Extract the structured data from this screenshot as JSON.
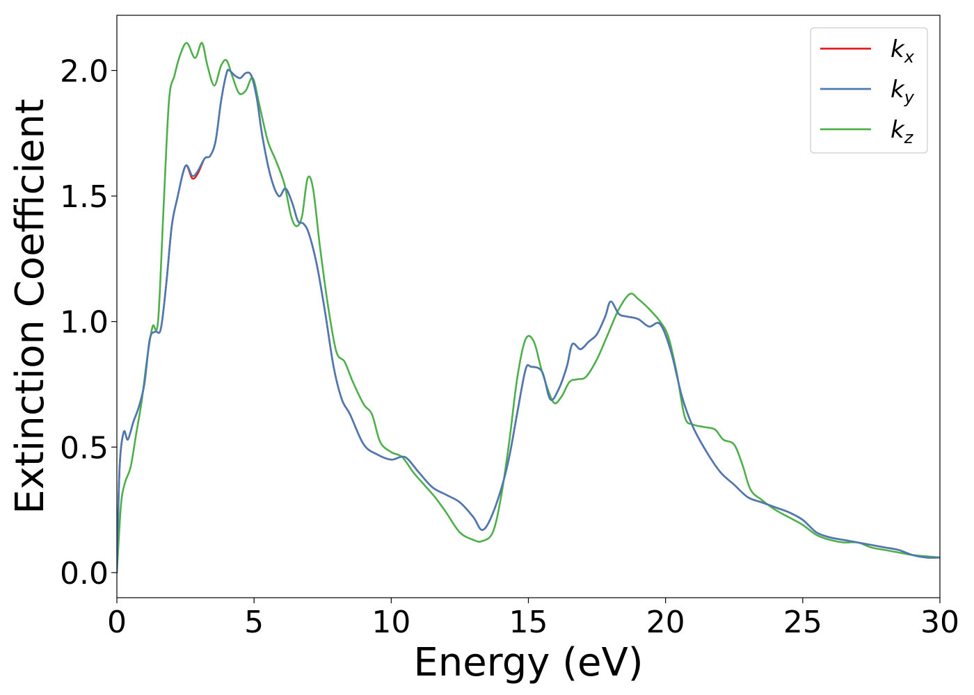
{
  "chart_data": {
    "type": "line",
    "xlabel": "Energy (eV)",
    "ylabel": "Extinction Coefficient",
    "xlim": [
      0,
      30
    ],
    "ylim": [
      -0.1,
      2.22
    ],
    "xticks": [
      0,
      5,
      10,
      15,
      20,
      25,
      30
    ],
    "xtick_labels": [
      "0",
      "5",
      "10",
      "15",
      "20",
      "25",
      "30"
    ],
    "yticks": [
      0.0,
      0.5,
      1.0,
      1.5,
      2.0
    ],
    "ytick_labels": [
      "0.0",
      "0.5",
      "1.0",
      "1.5",
      "2.0"
    ],
    "grid": false,
    "legend_position": "top-right",
    "series": [
      {
        "name": "k",
        "subscript": "x",
        "color": "#e41a1c",
        "x": [
          0,
          0.1,
          0.25,
          0.4,
          0.6,
          0.8,
          1.0,
          1.2,
          1.4,
          1.6,
          1.8,
          2.0,
          2.2,
          2.5,
          2.75,
          2.95,
          3.2,
          3.4,
          3.6,
          3.8,
          4.0,
          4.1,
          4.3,
          4.5,
          4.7,
          4.9,
          5.1,
          5.3,
          5.6,
          5.9,
          6.15,
          6.4,
          6.6,
          6.8,
          7.0,
          7.3,
          7.6,
          7.9,
          8.2,
          8.5,
          9.0,
          9.5,
          10.0,
          10.5,
          11.0,
          11.5,
          12.0,
          12.5,
          13.0,
          13.3,
          13.6,
          14.0,
          14.3,
          14.6,
          14.9,
          15.1,
          15.5,
          15.8,
          16.1,
          16.4,
          16.6,
          16.9,
          17.2,
          17.5,
          17.8,
          18.0,
          18.3,
          18.6,
          19.0,
          19.4,
          19.8,
          20.2,
          20.6,
          21.0,
          21.5,
          22.0,
          22.5,
          23.0,
          23.5,
          24.0,
          24.5,
          25.0,
          25.5,
          26.0,
          26.5,
          27.0,
          27.5,
          28.0,
          28.5,
          29.0,
          29.5,
          30.0
        ],
        "y": [
          0.0,
          0.42,
          0.56,
          0.53,
          0.6,
          0.66,
          0.75,
          0.93,
          0.96,
          0.97,
          1.15,
          1.38,
          1.49,
          1.62,
          1.57,
          1.59,
          1.65,
          1.66,
          1.72,
          1.88,
          1.99,
          2.0,
          1.98,
          1.97,
          1.99,
          1.98,
          1.89,
          1.74,
          1.58,
          1.5,
          1.53,
          1.47,
          1.4,
          1.39,
          1.35,
          1.22,
          1.03,
          0.82,
          0.69,
          0.63,
          0.51,
          0.47,
          0.45,
          0.46,
          0.4,
          0.34,
          0.31,
          0.28,
          0.22,
          0.17,
          0.21,
          0.33,
          0.46,
          0.64,
          0.81,
          0.82,
          0.8,
          0.69,
          0.73,
          0.82,
          0.91,
          0.89,
          0.92,
          0.95,
          1.02,
          1.08,
          1.03,
          1.02,
          1.01,
          0.98,
          0.99,
          0.88,
          0.7,
          0.58,
          0.48,
          0.4,
          0.35,
          0.3,
          0.28,
          0.26,
          0.24,
          0.21,
          0.16,
          0.14,
          0.13,
          0.12,
          0.11,
          0.1,
          0.09,
          0.07,
          0.06,
          0.06
        ]
      },
      {
        "name": "k",
        "subscript": "y",
        "color": "#4a7ab4",
        "x": [
          0,
          0.1,
          0.25,
          0.4,
          0.6,
          0.8,
          1.0,
          1.2,
          1.4,
          1.6,
          1.8,
          2.0,
          2.2,
          2.5,
          2.75,
          2.95,
          3.2,
          3.4,
          3.6,
          3.8,
          4.0,
          4.1,
          4.3,
          4.5,
          4.7,
          4.9,
          5.1,
          5.3,
          5.6,
          5.9,
          6.15,
          6.4,
          6.6,
          6.8,
          7.0,
          7.3,
          7.6,
          7.9,
          8.2,
          8.5,
          9.0,
          9.5,
          10.0,
          10.5,
          11.0,
          11.5,
          12.0,
          12.5,
          13.0,
          13.3,
          13.6,
          14.0,
          14.3,
          14.6,
          14.9,
          15.1,
          15.5,
          15.8,
          16.1,
          16.4,
          16.6,
          16.9,
          17.2,
          17.5,
          17.8,
          18.0,
          18.3,
          18.6,
          19.0,
          19.4,
          19.8,
          20.2,
          20.6,
          21.0,
          21.5,
          22.0,
          22.5,
          23.0,
          23.5,
          24.0,
          24.5,
          25.0,
          25.5,
          26.0,
          26.5,
          27.0,
          27.5,
          28.0,
          28.5,
          29.0,
          29.5,
          30.0
        ],
        "y": [
          0.0,
          0.42,
          0.56,
          0.53,
          0.6,
          0.66,
          0.75,
          0.93,
          0.96,
          0.97,
          1.15,
          1.38,
          1.49,
          1.62,
          1.58,
          1.6,
          1.65,
          1.66,
          1.72,
          1.88,
          1.99,
          2.0,
          1.98,
          1.97,
          1.99,
          1.98,
          1.89,
          1.74,
          1.58,
          1.5,
          1.53,
          1.47,
          1.4,
          1.39,
          1.35,
          1.22,
          1.03,
          0.82,
          0.69,
          0.63,
          0.51,
          0.47,
          0.45,
          0.46,
          0.4,
          0.34,
          0.31,
          0.28,
          0.22,
          0.17,
          0.21,
          0.33,
          0.46,
          0.64,
          0.81,
          0.82,
          0.8,
          0.69,
          0.73,
          0.82,
          0.91,
          0.89,
          0.92,
          0.95,
          1.02,
          1.08,
          1.03,
          1.02,
          1.01,
          0.98,
          0.99,
          0.88,
          0.7,
          0.58,
          0.48,
          0.4,
          0.35,
          0.3,
          0.28,
          0.26,
          0.24,
          0.21,
          0.16,
          0.14,
          0.13,
          0.12,
          0.11,
          0.1,
          0.09,
          0.07,
          0.06,
          0.06
        ]
      },
      {
        "name": "k",
        "subscript": "z",
        "color": "#4daf4a",
        "x": [
          0,
          0.15,
          0.3,
          0.5,
          0.7,
          0.9,
          1.1,
          1.3,
          1.5,
          1.7,
          1.9,
          2.1,
          2.3,
          2.55,
          2.85,
          3.1,
          3.3,
          3.55,
          3.8,
          4.0,
          4.2,
          4.45,
          4.7,
          4.95,
          5.2,
          5.5,
          5.8,
          6.1,
          6.35,
          6.55,
          6.75,
          6.95,
          7.15,
          7.4,
          7.7,
          8.0,
          8.3,
          8.6,
          9.0,
          9.3,
          9.6,
          10.0,
          10.4,
          10.8,
          11.2,
          11.6,
          12.0,
          12.5,
          13.0,
          13.3,
          13.7,
          14.0,
          14.3,
          14.6,
          14.9,
          15.2,
          15.5,
          15.9,
          16.2,
          16.5,
          16.8,
          17.1,
          17.5,
          17.9,
          18.3,
          18.7,
          19.0,
          19.4,
          19.8,
          20.1,
          20.4,
          20.7,
          21.0,
          21.4,
          21.8,
          22.1,
          22.5,
          22.8,
          23.1,
          23.5,
          24.0,
          24.5,
          25.0,
          25.5,
          26.0,
          26.5,
          27.0,
          27.5,
          28.0,
          28.5,
          29.0,
          29.5,
          30.0
        ],
        "y": [
          0.0,
          0.27,
          0.36,
          0.42,
          0.55,
          0.68,
          0.85,
          0.98,
          1.0,
          1.45,
          1.88,
          1.98,
          2.06,
          2.11,
          2.05,
          2.11,
          2.02,
          1.94,
          2.02,
          2.04,
          1.98,
          1.91,
          1.92,
          1.97,
          1.86,
          1.72,
          1.64,
          1.55,
          1.42,
          1.38,
          1.42,
          1.57,
          1.53,
          1.3,
          1.06,
          0.88,
          0.84,
          0.76,
          0.67,
          0.63,
          0.52,
          0.48,
          0.46,
          0.4,
          0.35,
          0.3,
          0.24,
          0.16,
          0.13,
          0.125,
          0.16,
          0.3,
          0.52,
          0.78,
          0.93,
          0.92,
          0.8,
          0.68,
          0.7,
          0.76,
          0.77,
          0.78,
          0.85,
          0.95,
          1.05,
          1.11,
          1.09,
          1.05,
          1.0,
          0.94,
          0.8,
          0.62,
          0.59,
          0.58,
          0.57,
          0.53,
          0.51,
          0.43,
          0.33,
          0.29,
          0.25,
          0.22,
          0.19,
          0.15,
          0.13,
          0.12,
          0.12,
          0.1,
          0.09,
          0.08,
          0.07,
          0.065,
          0.06
        ]
      }
    ]
  }
}
